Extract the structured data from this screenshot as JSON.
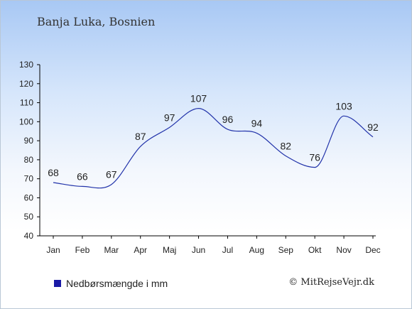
{
  "chart_data": {
    "type": "line",
    "title": "Banja Luka, Bosnien",
    "categories": [
      "Jan",
      "Feb",
      "Mar",
      "Apr",
      "Maj",
      "Jun",
      "Jul",
      "Aug",
      "Sep",
      "Okt",
      "Nov",
      "Dec"
    ],
    "series": [
      {
        "name": "Nedbørsmængde i mm",
        "values": [
          68,
          66,
          67,
          87,
          97,
          107,
          96,
          94,
          82,
          76,
          103,
          92
        ]
      }
    ],
    "ylim": [
      40,
      130
    ],
    "yticks": [
      40,
      50,
      60,
      70,
      80,
      90,
      100,
      110,
      120,
      130
    ],
    "xlabel": "",
    "ylabel": "",
    "grid": false,
    "legend": "bottom-left",
    "colors": {
      "line": "#2233aa",
      "legend_marker": "#1a1aa6"
    }
  },
  "credit": "© MitRejseVejr.dk"
}
